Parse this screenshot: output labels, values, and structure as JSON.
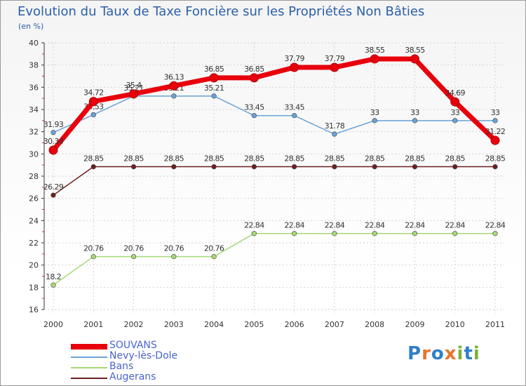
{
  "header": {
    "title": "Evolution du Taux de Taxe Foncière sur les Propriétés Non Bâties",
    "unit": "(en %)"
  },
  "logo": {
    "text": "Proxiti",
    "colors": [
      "#2f7fc8",
      "#e8742b",
      "#2f7fc8",
      "#e8742b",
      "#7ab23a",
      "#2f7fc8",
      "#7ab23a"
    ]
  },
  "chart_data": {
    "type": "line",
    "categories": [
      "2000",
      "2001",
      "2002",
      "2003",
      "2004",
      "2005",
      "2006",
      "2007",
      "2008",
      "2009",
      "2010",
      "2011"
    ],
    "ylim": [
      16,
      40
    ],
    "yticks": [
      "16",
      "18",
      "20",
      "22",
      "24",
      "26",
      "28",
      "30",
      "32",
      "34",
      "36",
      "38",
      "40"
    ],
    "grid": true,
    "series": [
      {
        "name": "Augerans",
        "color": "#6b1f1f",
        "values": [
          26.29,
          28.85,
          28.85,
          28.85,
          28.85,
          28.85,
          28.85,
          28.85,
          28.85,
          28.85,
          28.85,
          28.85
        ],
        "labels": [
          "26.29",
          "28.85",
          "28.85",
          "28.85",
          "28.85",
          "28.85",
          "28.85",
          "28.85",
          "28.85",
          "28.85",
          "28.85",
          "28.85"
        ]
      },
      {
        "name": "Bans",
        "color": "#a8d878",
        "values": [
          18.2,
          20.76,
          20.76,
          20.76,
          20.76,
          22.84,
          22.84,
          22.84,
          22.84,
          22.84,
          22.84,
          22.84
        ],
        "labels": [
          "18.2",
          "20.76",
          "20.76",
          "20.76",
          "20.76",
          "22.84",
          "22.84",
          "22.84",
          "22.84",
          "22.84",
          "22.84",
          "22.84"
        ]
      },
      {
        "name": "Nevy-lès-Dole",
        "color": "#6aa2d6",
        "values": [
          31.93,
          33.53,
          35.21,
          35.21,
          35.21,
          33.45,
          33.45,
          31.78,
          33,
          33,
          33,
          33
        ],
        "labels": [
          "31.93",
          "33.53",
          "35.21",
          "35.21",
          "35.21",
          "33.45",
          "33.45",
          "31.78",
          "33",
          "33",
          "33",
          "33"
        ]
      },
      {
        "name": "SOUVANS",
        "color": "#e8000c",
        "values": [
          30.34,
          34.72,
          35.4,
          36.13,
          36.85,
          36.85,
          37.79,
          37.79,
          38.55,
          38.55,
          34.69,
          31.22
        ],
        "labels": [
          "30.34",
          "34.72",
          "35.4",
          "36.13",
          "36.85",
          "36.85",
          "37.79",
          "37.79",
          "38.55",
          "38.55",
          "34.69",
          "31.22"
        ]
      }
    ],
    "legend_order": [
      "SOUVANS",
      "Nevy-lès-Dole",
      "Bans",
      "Augerans"
    ]
  }
}
